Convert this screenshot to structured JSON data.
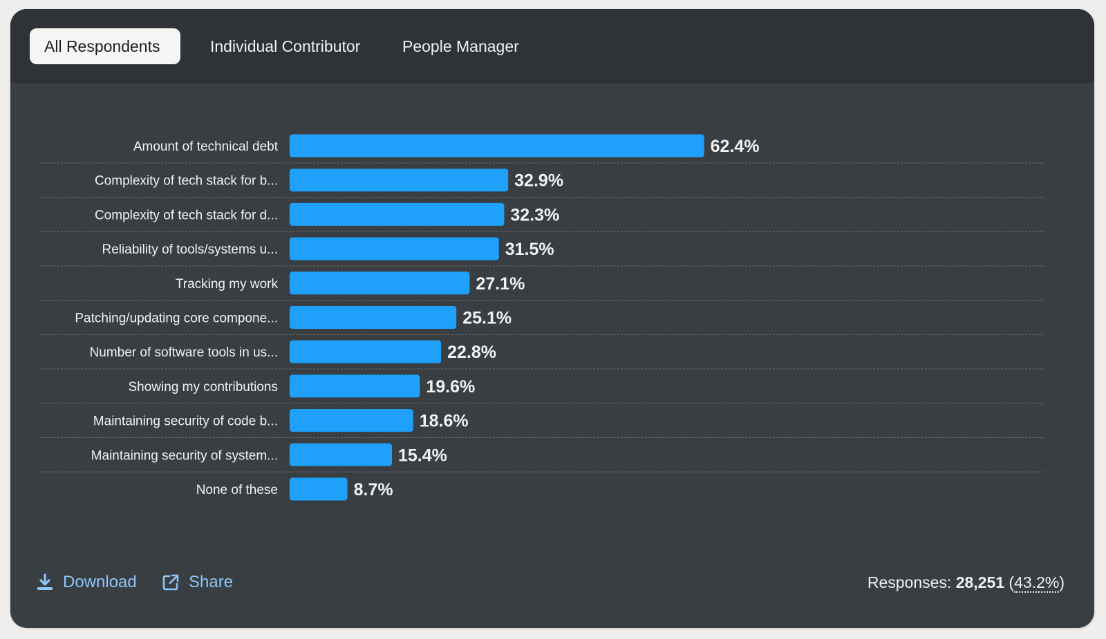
{
  "tabs": [
    {
      "label": "All Respondents",
      "active": true
    },
    {
      "label": "Individual Contributor",
      "active": false
    },
    {
      "label": "People Manager",
      "active": false
    }
  ],
  "colors": {
    "bar": "#1fa0fb",
    "link": "#8ec5f6"
  },
  "chart_data": {
    "type": "bar",
    "orientation": "horizontal",
    "categories": [
      "Amount of technical debt",
      "Complexity of tech stack for b...",
      "Complexity of tech stack for d...",
      "Reliability of tools/systems u...",
      "Tracking my work",
      "Patching/updating core compone...",
      "Number of software tools in us...",
      "Showing my contributions",
      "Maintaining security of code b...",
      "Maintaining security of system...",
      "None of these"
    ],
    "values": [
      62.4,
      32.9,
      32.3,
      31.5,
      27.1,
      25.1,
      22.8,
      19.6,
      18.6,
      15.4,
      8.7
    ],
    "value_labels": [
      "62.4%",
      "32.9%",
      "32.3%",
      "31.5%",
      "27.1%",
      "25.1%",
      "22.8%",
      "19.6%",
      "18.6%",
      "15.4%",
      "8.7%"
    ],
    "xlim": [
      0,
      100
    ],
    "unit": "%",
    "grid": "dotted row separators"
  },
  "footer": {
    "download_label": "Download",
    "download_icon": "download-icon",
    "share_label": "Share",
    "share_icon": "share-icon",
    "responses_label": "Responses:",
    "responses_count": "28,251",
    "responses_pct": "43.2%"
  }
}
